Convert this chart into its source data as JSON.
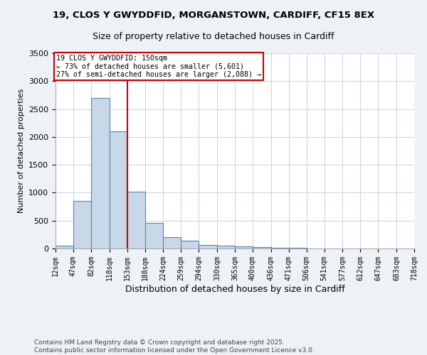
{
  "title1": "19, CLOS Y GWYDDFID, MORGANSTOWN, CARDIFF, CF15 8EX",
  "title2": "Size of property relative to detached houses in Cardiff",
  "xlabel": "Distribution of detached houses by size in Cardiff",
  "ylabel": "Number of detached properties",
  "bin_edges": [
    12,
    47,
    82,
    118,
    153,
    188,
    224,
    259,
    294,
    330,
    365,
    400,
    436,
    471,
    506,
    541,
    577,
    612,
    647,
    683,
    718
  ],
  "bar_heights": [
    50,
    850,
    2700,
    2100,
    1020,
    460,
    210,
    145,
    65,
    50,
    35,
    20,
    15,
    10,
    5,
    3,
    2,
    2,
    1,
    1
  ],
  "bar_color": "#c8d8e8",
  "bar_edge_color": "#5588aa",
  "vline_x": 153,
  "vline_color": "#cc0000",
  "annotation_title": "19 CLOS Y GWYDDFID: 150sqm",
  "annotation_line2": "← 73% of detached houses are smaller (5,601)",
  "annotation_line3": "27% of semi-detached houses are larger (2,088) →",
  "annotation_box_color": "#cc0000",
  "ylim": [
    0,
    3500
  ],
  "yticks": [
    0,
    500,
    1000,
    1500,
    2000,
    2500,
    3000,
    3500
  ],
  "tick_labels": [
    "12sqm",
    "47sqm",
    "82sqm",
    "118sqm",
    "153sqm",
    "188sqm",
    "224sqm",
    "259sqm",
    "294sqm",
    "330sqm",
    "365sqm",
    "400sqm",
    "436sqm",
    "471sqm",
    "506sqm",
    "541sqm",
    "577sqm",
    "612sqm",
    "647sqm",
    "683sqm",
    "718sqm"
  ],
  "footer_line1": "Contains HM Land Registry data © Crown copyright and database right 2025.",
  "footer_line2": "Contains public sector information licensed under the Open Government Licence v3.0.",
  "bg_color": "#eef2f7",
  "plot_bg_color": "#ffffff",
  "grid_color": "#c8d4e0"
}
